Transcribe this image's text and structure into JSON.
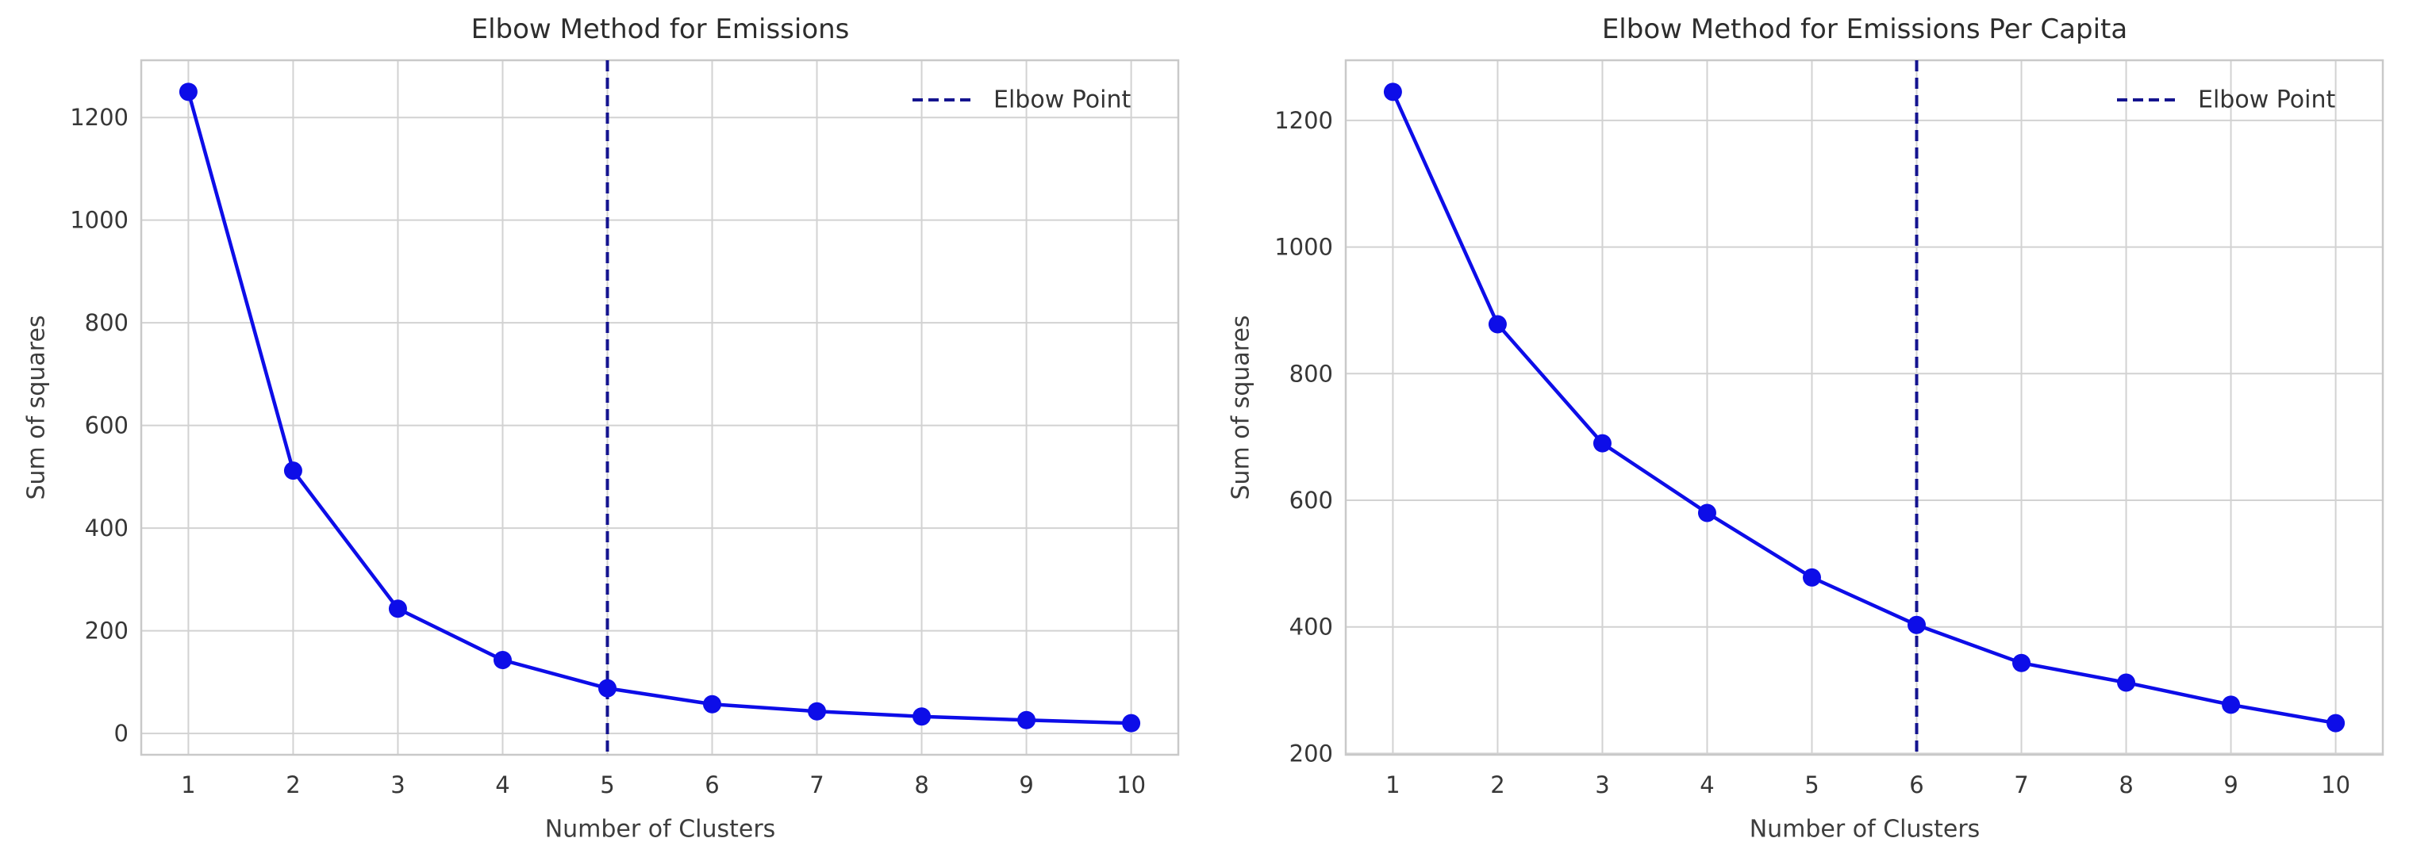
{
  "chart_data": [
    {
      "type": "line",
      "title": "Elbow Method for Emissions",
      "xlabel": "Number of Clusters",
      "ylabel": "Sum of squares",
      "x": [
        1,
        2,
        3,
        4,
        5,
        6,
        7,
        8,
        9,
        10
      ],
      "values": [
        1250,
        512,
        243,
        143,
        88,
        57,
        43,
        33,
        26,
        20
      ],
      "elbow_x": 5,
      "legend_label": "Elbow Point",
      "legend_position": "upper right",
      "xticks": [
        1,
        2,
        3,
        4,
        5,
        6,
        7,
        8,
        9,
        10
      ],
      "yticks": [
        0,
        200,
        400,
        600,
        800,
        1000,
        1200
      ],
      "xlim": [
        0.55,
        10.45
      ],
      "ylim": [
        -41.5,
        1311.5
      ],
      "grid": true
    },
    {
      "type": "line",
      "title": "Elbow Method for Emissions Per Capita",
      "xlabel": "Number of Clusters",
      "ylabel": "Sum of squares",
      "x": [
        1,
        2,
        3,
        4,
        5,
        6,
        7,
        8,
        9,
        10
      ],
      "values": [
        1245,
        878,
        690,
        580,
        478,
        403,
        343,
        312,
        277,
        248
      ],
      "elbow_x": 6,
      "legend_label": "Elbow Point",
      "legend_position": "upper right",
      "xticks": [
        1,
        2,
        3,
        4,
        5,
        6,
        7,
        8,
        9,
        10
      ],
      "yticks": [
        200,
        400,
        600,
        800,
        1000,
        1200
      ],
      "xlim": [
        0.55,
        10.45
      ],
      "ylim": [
        198,
        1295
      ],
      "grid": true
    }
  ],
  "styles": {
    "line_color": "#0d0de8",
    "marker_color": "#0d0de8",
    "elbow_line_color": "#14148f",
    "elbow_line_style": "dashed",
    "grid_color": "#d2d2d2",
    "spine_color": "#c9c9c9",
    "tick_color": "#373737",
    "title_color": "#2d2d2d",
    "label_color": "#3d3d3d",
    "background": "#ffffff"
  }
}
